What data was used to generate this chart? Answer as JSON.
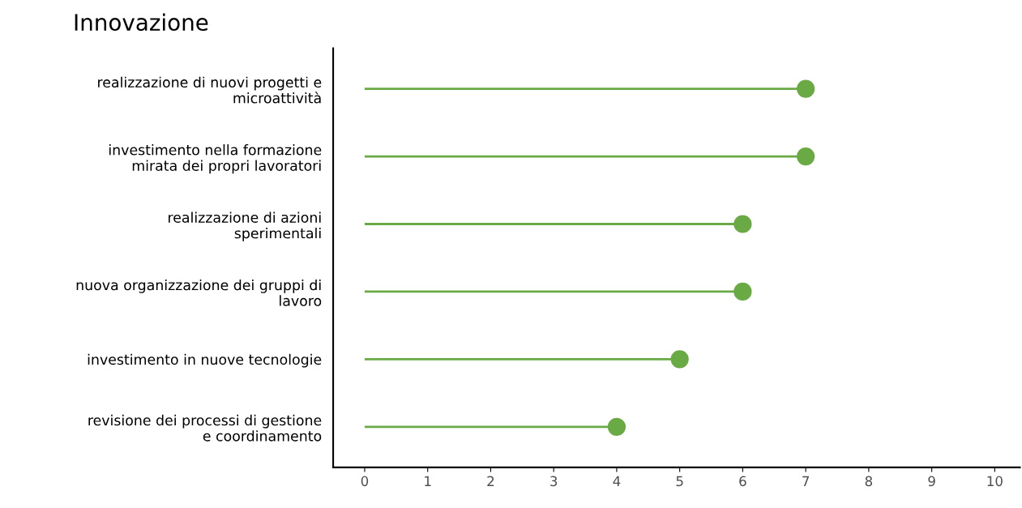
{
  "chart_data": {
    "type": "lollipop",
    "orientation": "horizontal",
    "title": "Innovazione",
    "categories": [
      "realizzazione di nuovi progetti e\nmicroattività",
      "investimento nella formazione\nmirata dei propri lavoratori",
      "realizzazione di azioni\nsperimentali",
      "nuova organizzazione dei gruppi di\nlavoro",
      "investimento in nuove tecnologie",
      "revisione dei processi di gestione\ne coordinamento"
    ],
    "values": [
      7,
      7,
      6,
      6,
      5,
      4
    ],
    "color": "#6aaa45",
    "xlim": [
      -0.5,
      10.4
    ],
    "xticks": [
      0,
      1,
      2,
      3,
      4,
      5,
      6,
      7,
      8,
      9,
      10
    ],
    "grid": false,
    "marker": "circle"
  }
}
